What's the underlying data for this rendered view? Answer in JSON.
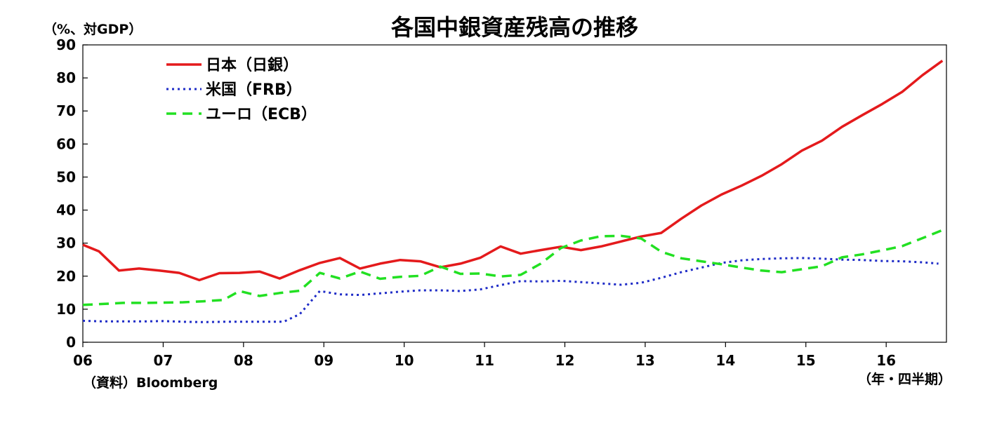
{
  "chart_data": {
    "type": "line",
    "title": "各国中銀資産残高の推移",
    "ylabel": "（%、対GDP）",
    "xlabel": "（年・四半期）",
    "source": "（資料）Bloomberg",
    "ylim": [
      0,
      90
    ],
    "yticks": [
      0,
      10,
      20,
      30,
      40,
      50,
      60,
      70,
      80,
      90
    ],
    "xlim": [
      2006.0,
      2016.75
    ],
    "xticks": [
      {
        "value": 2006,
        "label": "06"
      },
      {
        "value": 2007,
        "label": "07"
      },
      {
        "value": 2008,
        "label": "08"
      },
      {
        "value": 2009,
        "label": "09"
      },
      {
        "value": 2010,
        "label": "10"
      },
      {
        "value": 2011,
        "label": "11"
      },
      {
        "value": 2012,
        "label": "12"
      },
      {
        "value": 2013,
        "label": "13"
      },
      {
        "value": 2014,
        "label": "14"
      },
      {
        "value": 2015,
        "label": "15"
      },
      {
        "value": 2016,
        "label": "16"
      }
    ],
    "legend_position": "top-left",
    "grid": false,
    "series": [
      {
        "name": "日本（日銀）",
        "color": "#e41a1c",
        "style": "solid",
        "points": [
          [
            2006.0,
            29.5
          ],
          [
            2006.2,
            27.5
          ],
          [
            2006.45,
            21.7
          ],
          [
            2006.7,
            22.3
          ],
          [
            2006.95,
            21.7
          ],
          [
            2007.2,
            21.0
          ],
          [
            2007.45,
            18.8
          ],
          [
            2007.7,
            20.9
          ],
          [
            2007.95,
            21.0
          ],
          [
            2008.2,
            21.4
          ],
          [
            2008.45,
            19.3
          ],
          [
            2008.7,
            21.8
          ],
          [
            2008.95,
            24.0
          ],
          [
            2009.2,
            25.5
          ],
          [
            2009.45,
            22.3
          ],
          [
            2009.7,
            23.8
          ],
          [
            2009.95,
            24.9
          ],
          [
            2010.2,
            24.5
          ],
          [
            2010.45,
            22.7
          ],
          [
            2010.7,
            23.8
          ],
          [
            2010.95,
            25.6
          ],
          [
            2011.2,
            29.0
          ],
          [
            2011.45,
            26.8
          ],
          [
            2011.7,
            27.9
          ],
          [
            2011.95,
            28.9
          ],
          [
            2012.2,
            27.9
          ],
          [
            2012.45,
            29.0
          ],
          [
            2012.7,
            30.5
          ],
          [
            2012.95,
            32.0
          ],
          [
            2013.2,
            33.1
          ],
          [
            2013.45,
            37.4
          ],
          [
            2013.7,
            41.4
          ],
          [
            2013.95,
            44.7
          ],
          [
            2014.2,
            47.4
          ],
          [
            2014.45,
            50.4
          ],
          [
            2014.7,
            53.9
          ],
          [
            2014.95,
            58.0
          ],
          [
            2015.2,
            61.0
          ],
          [
            2015.45,
            65.2
          ],
          [
            2015.7,
            68.7
          ],
          [
            2015.95,
            72.1
          ],
          [
            2016.2,
            75.8
          ],
          [
            2016.45,
            80.8
          ],
          [
            2016.7,
            85.2
          ]
        ]
      },
      {
        "name": "米国（FRB）",
        "color": "#1f2cc7",
        "style": "dotted",
        "points": [
          [
            2006.0,
            6.5
          ],
          [
            2006.25,
            6.3
          ],
          [
            2006.5,
            6.3
          ],
          [
            2006.75,
            6.3
          ],
          [
            2007.0,
            6.4
          ],
          [
            2007.25,
            6.2
          ],
          [
            2007.5,
            6.1
          ],
          [
            2007.75,
            6.2
          ],
          [
            2008.0,
            6.2
          ],
          [
            2008.25,
            6.2
          ],
          [
            2008.5,
            6.2
          ],
          [
            2008.7,
            8.5
          ],
          [
            2008.95,
            15.5
          ],
          [
            2009.2,
            14.5
          ],
          [
            2009.45,
            14.3
          ],
          [
            2009.7,
            14.8
          ],
          [
            2009.95,
            15.3
          ],
          [
            2010.2,
            15.7
          ],
          [
            2010.45,
            15.7
          ],
          [
            2010.7,
            15.5
          ],
          [
            2010.95,
            16.0
          ],
          [
            2011.2,
            17.3
          ],
          [
            2011.45,
            18.5
          ],
          [
            2011.7,
            18.4
          ],
          [
            2011.95,
            18.6
          ],
          [
            2012.2,
            18.2
          ],
          [
            2012.45,
            17.8
          ],
          [
            2012.7,
            17.4
          ],
          [
            2012.95,
            18.0
          ],
          [
            2013.2,
            19.5
          ],
          [
            2013.45,
            21.2
          ],
          [
            2013.7,
            22.6
          ],
          [
            2013.95,
            24.0
          ],
          [
            2014.2,
            24.8
          ],
          [
            2014.45,
            25.2
          ],
          [
            2014.7,
            25.4
          ],
          [
            2014.95,
            25.5
          ],
          [
            2015.2,
            25.3
          ],
          [
            2015.45,
            25.0
          ],
          [
            2015.7,
            24.9
          ],
          [
            2015.95,
            24.6
          ],
          [
            2016.2,
            24.5
          ],
          [
            2016.45,
            24.2
          ],
          [
            2016.65,
            23.8
          ]
        ]
      },
      {
        "name": "ユーロ（ECB）",
        "color": "#22e022",
        "style": "dashed",
        "points": [
          [
            2006.0,
            11.3
          ],
          [
            2006.25,
            11.6
          ],
          [
            2006.5,
            11.9
          ],
          [
            2006.75,
            11.9
          ],
          [
            2007.0,
            12.0
          ],
          [
            2007.25,
            12.1
          ],
          [
            2007.5,
            12.4
          ],
          [
            2007.75,
            12.8
          ],
          [
            2007.95,
            15.5
          ],
          [
            2008.2,
            14.0
          ],
          [
            2008.45,
            14.9
          ],
          [
            2008.7,
            15.6
          ],
          [
            2008.95,
            21.0
          ],
          [
            2009.2,
            19.3
          ],
          [
            2009.45,
            21.4
          ],
          [
            2009.7,
            19.2
          ],
          [
            2009.95,
            19.8
          ],
          [
            2010.2,
            20.1
          ],
          [
            2010.45,
            22.9
          ],
          [
            2010.7,
            20.7
          ],
          [
            2010.95,
            20.8
          ],
          [
            2011.2,
            19.9
          ],
          [
            2011.45,
            20.4
          ],
          [
            2011.7,
            23.8
          ],
          [
            2011.95,
            28.5
          ],
          [
            2012.2,
            30.8
          ],
          [
            2012.45,
            32.1
          ],
          [
            2012.7,
            32.2
          ],
          [
            2012.95,
            31.4
          ],
          [
            2013.2,
            27.4
          ],
          [
            2013.45,
            25.4
          ],
          [
            2013.7,
            24.5
          ],
          [
            2013.95,
            23.6
          ],
          [
            2014.2,
            22.6
          ],
          [
            2014.45,
            21.7
          ],
          [
            2014.7,
            21.2
          ],
          [
            2014.95,
            22.1
          ],
          [
            2015.2,
            23.0
          ],
          [
            2015.45,
            25.7
          ],
          [
            2015.7,
            26.6
          ],
          [
            2015.95,
            27.8
          ],
          [
            2016.2,
            29.1
          ],
          [
            2016.45,
            31.5
          ],
          [
            2016.75,
            34.4
          ]
        ]
      }
    ]
  }
}
